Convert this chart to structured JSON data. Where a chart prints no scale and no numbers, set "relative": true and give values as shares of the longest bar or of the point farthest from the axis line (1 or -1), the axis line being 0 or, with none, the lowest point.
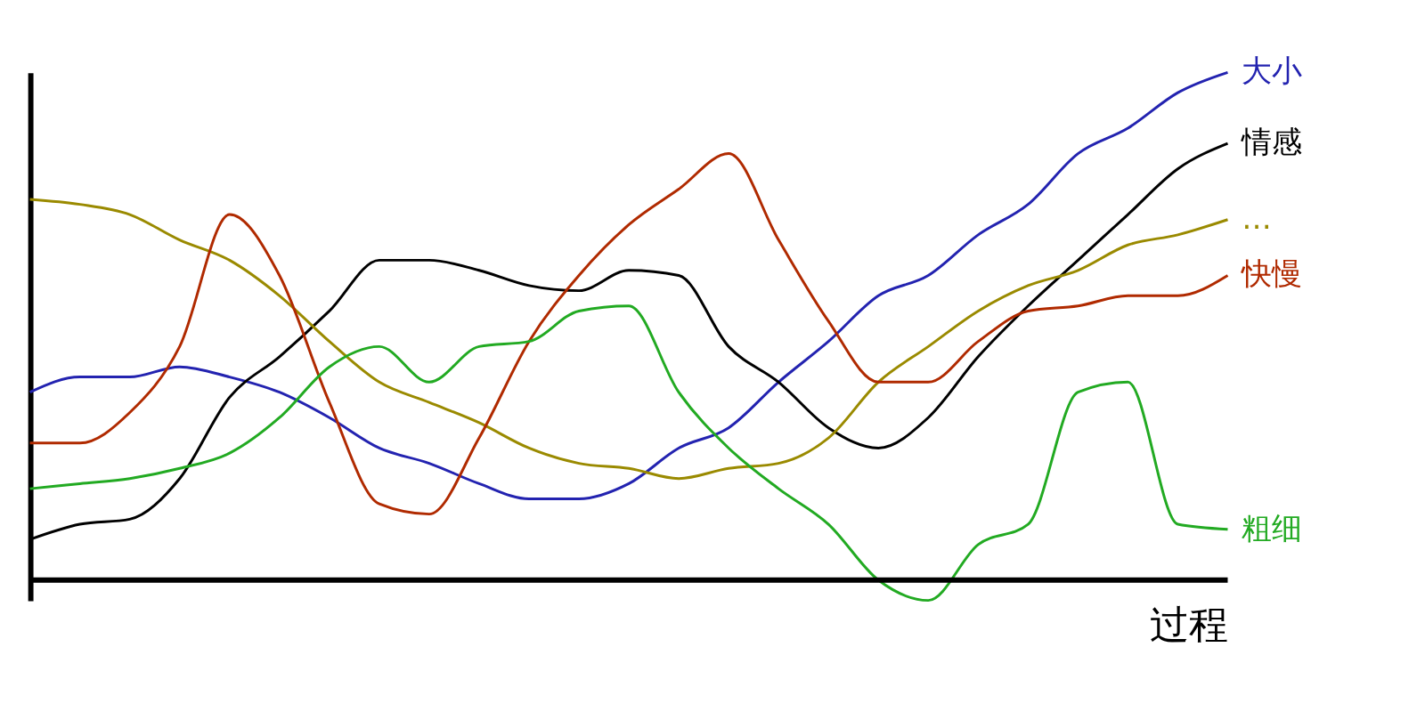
{
  "chart_data": {
    "type": "line",
    "relative": true,
    "xlabel": "过程",
    "categories": [
      null,
      null,
      null,
      null,
      null,
      null,
      null,
      null,
      null,
      null,
      null,
      null,
      null,
      null,
      null,
      null,
      null,
      null,
      null,
      null,
      null,
      null,
      null,
      null,
      null
    ],
    "series": [
      {
        "name": "大小",
        "color": "#2323b0",
        "values": [
          0.37,
          0.4,
          0.4,
          0.42,
          0.4,
          0.37,
          0.32,
          0.26,
          0.23,
          0.19,
          0.16,
          0.16,
          0.19,
          0.26,
          0.3,
          0.39,
          0.47,
          0.56,
          0.6,
          0.68,
          0.74,
          0.84,
          0.89,
          0.96,
          1
        ]
      },
      {
        "name": "情感",
        "color": "#000000",
        "values": [
          0.08,
          0.11,
          0.12,
          0.2,
          0.36,
          0.44,
          0.53,
          0.63,
          0.63,
          0.61,
          0.58,
          0.57,
          0.61,
          0.6,
          0.46,
          0.39,
          0.3,
          0.26,
          0.32,
          0.44,
          0.54,
          0.63,
          0.72,
          0.81,
          0.86
        ]
      },
      {
        "name": "…",
        "color": "#9a8a00",
        "values": [
          0.75,
          0.74,
          0.72,
          0.67,
          0.63,
          0.56,
          0.47,
          0.39,
          0.35,
          0.31,
          0.26,
          0.23,
          0.22,
          0.2,
          0.22,
          0.23,
          0.28,
          0.39,
          0.46,
          0.53,
          0.58,
          0.61,
          0.66,
          0.68,
          0.71
        ]
      },
      {
        "name": "快慢",
        "color": "#b02a00",
        "values": [
          0.27,
          0.27,
          0.33,
          0.46,
          0.72,
          0.6,
          0.35,
          0.15,
          0.13,
          0.28,
          0.47,
          0.6,
          0.7,
          0.77,
          0.84,
          0.67,
          0.51,
          0.39,
          0.39,
          0.47,
          0.53,
          0.54,
          0.56,
          0.56,
          0.6
        ]
      },
      {
        "name": "粗细",
        "color": "#22aa22",
        "values": [
          0.18,
          0.19,
          0.2,
          0.22,
          0.25,
          0.32,
          0.42,
          0.46,
          0.39,
          0.46,
          0.47,
          0.53,
          0.54,
          0.37,
          0.26,
          0.18,
          0.11,
          0,
          -0.04,
          0.07,
          0.11,
          0.37,
          0.39,
          0.11,
          0.1
        ]
      }
    ]
  }
}
